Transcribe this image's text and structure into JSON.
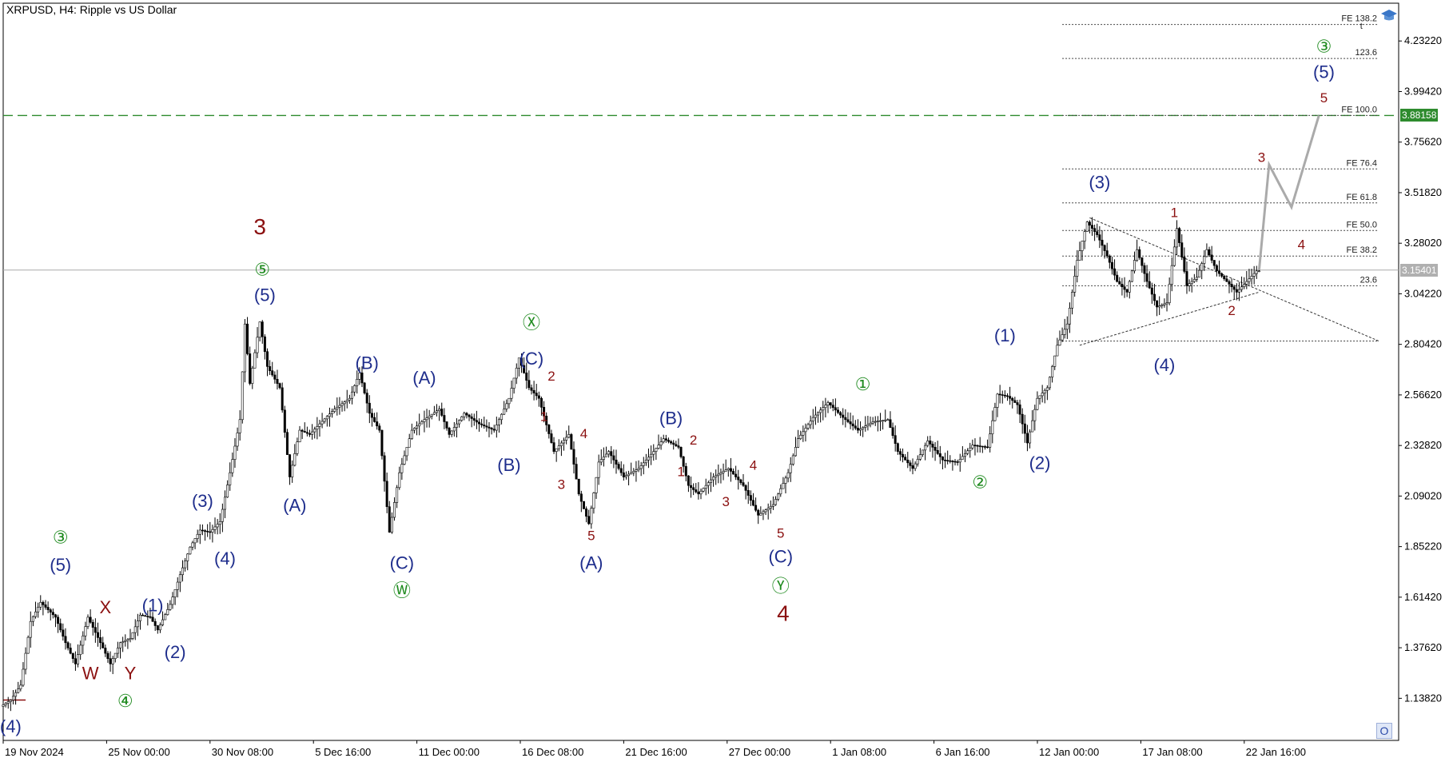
{
  "header": {
    "title": "XRPUSD, H4:  Ripple vs US Dollar"
  },
  "price_badges": {
    "current": "3.15401",
    "target": "3.88158"
  },
  "buttons": {
    "o": "O"
  },
  "colors": {
    "candle": "#000000",
    "target_line": "#2e8b2e",
    "current_line": "#aaaaaa",
    "forecast": "#aaaaaa",
    "navy": "#1e2d8c",
    "maroon": "#8b1010",
    "green": "#1e8a1e"
  },
  "chart_data": {
    "type": "line",
    "symbol": "XRPUSD",
    "timeframe": "H4",
    "title": "XRPUSD, H4:  Ripple vs US Dollar",
    "ylim": [
      0.94,
      4.41
    ],
    "y_ticks": [
      1.1382,
      1.3762,
      1.6142,
      1.8522,
      2.0902,
      2.3282,
      2.5662,
      2.8042,
      3.0422,
      3.2802,
      3.5182,
      3.7562,
      3.9942,
      4.2322
    ],
    "y_tick_labels": [
      "1.13820",
      "1.37620",
      "1.61420",
      "1.85220",
      "2.09020",
      "2.32820",
      "2.56620",
      "2.80420",
      "3.04220",
      "3.28020",
      "3.51820",
      "3.75620",
      "3.99420",
      "4.23220"
    ],
    "x_ticks": [
      "19 Nov 2024",
      "25 Nov 00:00",
      "30 Nov 08:00",
      "5 Dec 16:00",
      "11 Dec 00:00",
      "16 Dec 08:00",
      "21 Dec 16:00",
      "27 Dec 00:00",
      "1 Jan 08:00",
      "6 Jan 16:00",
      "12 Jan 00:00",
      "17 Jan 08:00",
      "22 Jan 16:00"
    ],
    "current_price": 3.15401,
    "target_price": 3.88158,
    "price_path": [
      [
        0,
        1.1
      ],
      [
        4,
        1.13
      ],
      [
        8,
        1.2
      ],
      [
        12,
        1.5
      ],
      [
        16,
        1.59
      ],
      [
        22,
        1.52
      ],
      [
        26,
        1.4
      ],
      [
        30,
        1.3
      ],
      [
        35,
        1.52
      ],
      [
        40,
        1.4
      ],
      [
        44,
        1.3
      ],
      [
        48,
        1.4
      ],
      [
        52,
        1.42
      ],
      [
        56,
        1.53
      ],
      [
        60,
        1.52
      ],
      [
        63,
        1.46
      ],
      [
        68,
        1.58
      ],
      [
        72,
        1.72
      ],
      [
        76,
        1.85
      ],
      [
        80,
        1.93
      ],
      [
        84,
        1.92
      ],
      [
        88,
        1.97
      ],
      [
        92,
        2.2
      ],
      [
        96,
        2.45
      ],
      [
        98,
        2.9
      ],
      [
        100,
        2.62
      ],
      [
        104,
        2.91
      ],
      [
        107,
        2.7
      ],
      [
        112,
        2.6
      ],
      [
        116,
        2.18
      ],
      [
        120,
        2.4
      ],
      [
        124,
        2.38
      ],
      [
        128,
        2.43
      ],
      [
        134,
        2.5
      ],
      [
        140,
        2.55
      ],
      [
        144,
        2.67
      ],
      [
        148,
        2.48
      ],
      [
        152,
        2.4
      ],
      [
        156,
        1.92
      ],
      [
        160,
        2.2
      ],
      [
        165,
        2.4
      ],
      [
        170,
        2.45
      ],
      [
        176,
        2.5
      ],
      [
        180,
        2.38
      ],
      [
        186,
        2.48
      ],
      [
        192,
        2.43
      ],
      [
        198,
        2.4
      ],
      [
        204,
        2.55
      ],
      [
        208,
        2.74
      ],
      [
        212,
        2.6
      ],
      [
        216,
        2.55
      ],
      [
        222,
        2.3
      ],
      [
        228,
        2.38
      ],
      [
        232,
        2.1
      ],
      [
        236,
        1.96
      ],
      [
        240,
        2.25
      ],
      [
        244,
        2.3
      ],
      [
        250,
        2.18
      ],
      [
        256,
        2.22
      ],
      [
        262,
        2.3
      ],
      [
        266,
        2.36
      ],
      [
        272,
        2.32
      ],
      [
        276,
        2.14
      ],
      [
        280,
        2.1
      ],
      [
        286,
        2.18
      ],
      [
        292,
        2.22
      ],
      [
        298,
        2.14
      ],
      [
        304,
        2.0
      ],
      [
        310,
        2.05
      ],
      [
        316,
        2.2
      ],
      [
        320,
        2.36
      ],
      [
        326,
        2.46
      ],
      [
        332,
        2.53
      ],
      [
        338,
        2.46
      ],
      [
        344,
        2.4
      ],
      [
        350,
        2.44
      ],
      [
        356,
        2.45
      ],
      [
        360,
        2.3
      ],
      [
        366,
        2.22
      ],
      [
        372,
        2.35
      ],
      [
        378,
        2.26
      ],
      [
        384,
        2.25
      ],
      [
        390,
        2.33
      ],
      [
        396,
        2.32
      ],
      [
        400,
        2.57
      ],
      [
        404,
        2.56
      ],
      [
        408,
        2.52
      ],
      [
        412,
        2.34
      ],
      [
        416,
        2.55
      ],
      [
        420,
        2.6
      ],
      [
        424,
        2.8
      ],
      [
        428,
        2.9
      ],
      [
        432,
        3.2
      ],
      [
        436,
        3.38
      ],
      [
        440,
        3.32
      ],
      [
        444,
        3.22
      ],
      [
        448,
        3.1
      ],
      [
        452,
        3.05
      ],
      [
        456,
        3.25
      ],
      [
        460,
        3.1
      ],
      [
        464,
        2.98
      ],
      [
        468,
        3.0
      ],
      [
        472,
        3.35
      ],
      [
        476,
        3.08
      ],
      [
        480,
        3.12
      ],
      [
        484,
        3.25
      ],
      [
        488,
        3.15
      ],
      [
        492,
        3.1
      ],
      [
        496,
        3.05
      ],
      [
        500,
        3.1
      ],
      [
        504,
        3.15
      ]
    ],
    "forecast_path": [
      [
        504,
        3.15401
      ],
      [
        508,
        3.65
      ],
      [
        517,
        3.45
      ],
      [
        528,
        3.88158
      ]
    ],
    "trendlines": [
      [
        [
          432,
          2.8
        ],
        [
          504,
          3.05
        ]
      ],
      [
        [
          436,
          3.4
        ],
        [
          552,
          2.82
        ]
      ]
    ],
    "fe_levels": [
      {
        "label": "23.6",
        "value": 3.08
      },
      {
        "label": "FE 38.2",
        "value": 3.22
      },
      {
        "label": "FE 50.0",
        "value": 3.34
      },
      {
        "label": "FE 61.8",
        "value": 3.47
      },
      {
        "label": "FE 76.4",
        "value": 3.63
      },
      {
        "label": "FE 100.0",
        "value": 3.8816
      },
      {
        "label": "123.6",
        "value": 4.15
      },
      {
        "label": "FE 138.2",
        "value": 4.31
      }
    ],
    "level_extra_label": "t",
    "fe_level_bottom": 2.82,
    "wave_labels": [
      {
        "t": "(4)",
        "x": 3,
        "y": 1.0,
        "c": "navy",
        "s": "m"
      },
      {
        "t": "(5)",
        "x": 23,
        "y": 1.76,
        "c": "navy",
        "s": "m"
      },
      {
        "t": "③",
        "x": 23,
        "y": 1.89,
        "c": "green",
        "s": "m"
      },
      {
        "t": "④",
        "x": 49,
        "y": 1.12,
        "c": "green",
        "s": "m"
      },
      {
        "t": "W",
        "x": 35,
        "y": 1.25,
        "c": "maroon",
        "s": "m"
      },
      {
        "t": "X",
        "x": 41,
        "y": 1.56,
        "c": "maroon",
        "s": "m"
      },
      {
        "t": "Y",
        "x": 51,
        "y": 1.25,
        "c": "maroon",
        "s": "m"
      },
      {
        "t": "(1)",
        "x": 60,
        "y": 1.57,
        "c": "navy",
        "s": "m"
      },
      {
        "t": "(2)",
        "x": 69,
        "y": 1.35,
        "c": "navy",
        "s": "m"
      },
      {
        "t": "(3)",
        "x": 80,
        "y": 2.06,
        "c": "navy",
        "s": "m"
      },
      {
        "t": "(4)",
        "x": 89,
        "y": 1.79,
        "c": "navy",
        "s": "m"
      },
      {
        "t": "(5)",
        "x": 105,
        "y": 3.03,
        "c": "navy",
        "s": "m"
      },
      {
        "t": "⑤",
        "x": 104,
        "y": 3.15,
        "c": "green",
        "s": "m"
      },
      {
        "t": "3",
        "x": 103,
        "y": 3.35,
        "c": "maroon",
        "s": "l"
      },
      {
        "t": "(A)",
        "x": 117,
        "y": 2.04,
        "c": "navy",
        "s": "m"
      },
      {
        "t": "(B)",
        "x": 146,
        "y": 2.71,
        "c": "navy",
        "s": "m"
      },
      {
        "t": "(C)",
        "x": 160,
        "y": 1.77,
        "c": "navy",
        "s": "m"
      },
      {
        "t": "Ⓦ",
        "x": 160,
        "y": 1.64,
        "c": "green",
        "s": "m"
      },
      {
        "t": "(A)",
        "x": 169,
        "y": 2.64,
        "c": "navy",
        "s": "m"
      },
      {
        "t": "(B)",
        "x": 203,
        "y": 2.23,
        "c": "navy",
        "s": "m"
      },
      {
        "t": "(C)",
        "x": 212,
        "y": 2.73,
        "c": "navy",
        "s": "m"
      },
      {
        "t": "Ⓧ",
        "x": 212,
        "y": 2.9,
        "c": "green",
        "s": "m"
      },
      {
        "t": "2",
        "x": 220,
        "y": 2.65,
        "c": "maroon",
        "s": "s"
      },
      {
        "t": "1",
        "x": 217,
        "y": 2.46,
        "c": "maroon",
        "s": "s"
      },
      {
        "t": "4",
        "x": 233,
        "y": 2.38,
        "c": "maroon",
        "s": "s"
      },
      {
        "t": "3",
        "x": 224,
        "y": 2.14,
        "c": "maroon",
        "s": "s"
      },
      {
        "t": "5",
        "x": 236,
        "y": 1.9,
        "c": "maroon",
        "s": "s"
      },
      {
        "t": "(A)",
        "x": 236,
        "y": 1.77,
        "c": "navy",
        "s": "m"
      },
      {
        "t": "(B)",
        "x": 268,
        "y": 2.45,
        "c": "navy",
        "s": "m"
      },
      {
        "t": "2",
        "x": 277,
        "y": 2.35,
        "c": "maroon",
        "s": "s"
      },
      {
        "t": "1",
        "x": 272,
        "y": 2.2,
        "c": "maroon",
        "s": "s"
      },
      {
        "t": "4",
        "x": 301,
        "y": 2.23,
        "c": "maroon",
        "s": "s"
      },
      {
        "t": "3",
        "x": 290,
        "y": 2.06,
        "c": "maroon",
        "s": "s"
      },
      {
        "t": "5",
        "x": 312,
        "y": 1.91,
        "c": "maroon",
        "s": "s"
      },
      {
        "t": "(C)",
        "x": 312,
        "y": 1.8,
        "c": "navy",
        "s": "m"
      },
      {
        "t": "Ⓨ",
        "x": 312,
        "y": 1.66,
        "c": "green",
        "s": "m"
      },
      {
        "t": "4",
        "x": 313,
        "y": 1.53,
        "c": "maroon",
        "s": "l"
      },
      {
        "t": "①",
        "x": 345,
        "y": 2.61,
        "c": "green",
        "s": "m"
      },
      {
        "t": "②",
        "x": 392,
        "y": 2.15,
        "c": "green",
        "s": "m"
      },
      {
        "t": "(1)",
        "x": 402,
        "y": 2.84,
        "c": "navy",
        "s": "m"
      },
      {
        "t": "(2)",
        "x": 416,
        "y": 2.24,
        "c": "navy",
        "s": "m"
      },
      {
        "t": "(3)",
        "x": 440,
        "y": 3.56,
        "c": "navy",
        "s": "m"
      },
      {
        "t": "(4)",
        "x": 466,
        "y": 2.7,
        "c": "navy",
        "s": "m"
      },
      {
        "t": "1",
        "x": 470,
        "y": 3.42,
        "c": "maroon",
        "s": "s"
      },
      {
        "t": "2",
        "x": 493,
        "y": 2.96,
        "c": "maroon",
        "s": "s"
      },
      {
        "t": "3",
        "x": 505,
        "y": 3.68,
        "c": "maroon",
        "s": "s"
      },
      {
        "t": "4",
        "x": 521,
        "y": 3.27,
        "c": "maroon",
        "s": "s"
      },
      {
        "t": "5",
        "x": 530,
        "y": 3.96,
        "c": "maroon",
        "s": "s"
      },
      {
        "t": "(5)",
        "x": 530,
        "y": 4.08,
        "c": "navy",
        "s": "m"
      },
      {
        "t": "③",
        "x": 530,
        "y": 4.2,
        "c": "green",
        "s": "m"
      }
    ]
  }
}
